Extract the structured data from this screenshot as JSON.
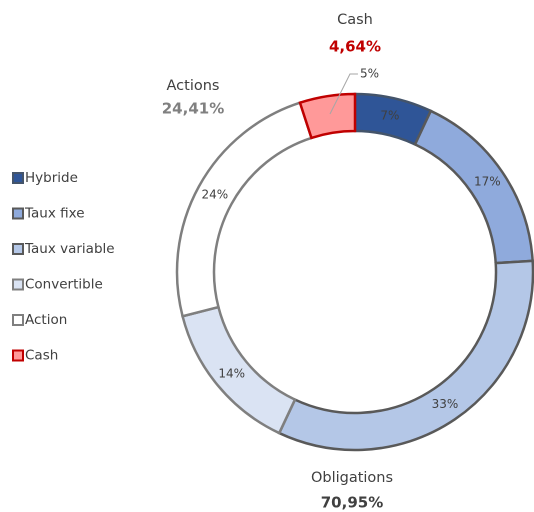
{
  "chart_data": {
    "type": "donut",
    "categories": [
      "Hybride",
      "Taux fixe",
      "Taux variable",
      "Convertible",
      "Action",
      "Cash"
    ],
    "values": [
      7,
      17,
      33,
      14,
      24,
      5
    ],
    "value_labels": [
      "7%",
      "17%",
      "33%",
      "14%",
      "24%",
      "5%"
    ],
    "colors": [
      "#2f5597",
      "#8faadc",
      "#b4c7e7",
      "#dae3f3",
      "#ffffff",
      "#ff9999"
    ],
    "edge_colors": [
      "#44546a",
      "#595959",
      "#595959",
      "#7f7f7f",
      "#7f7f7f",
      "#c00000"
    ],
    "legend": "left",
    "annotations": [
      {
        "text": "Cash",
        "value": 4.64,
        "value_label": "4,64%",
        "color": "#c00000"
      },
      {
        "text": "Actions",
        "value": 24.41,
        "value_label": "24,41%",
        "color": "#808080"
      },
      {
        "text": "Obligations",
        "value": 70.95,
        "value_label": "70,95%",
        "color": "#404040"
      }
    ]
  }
}
